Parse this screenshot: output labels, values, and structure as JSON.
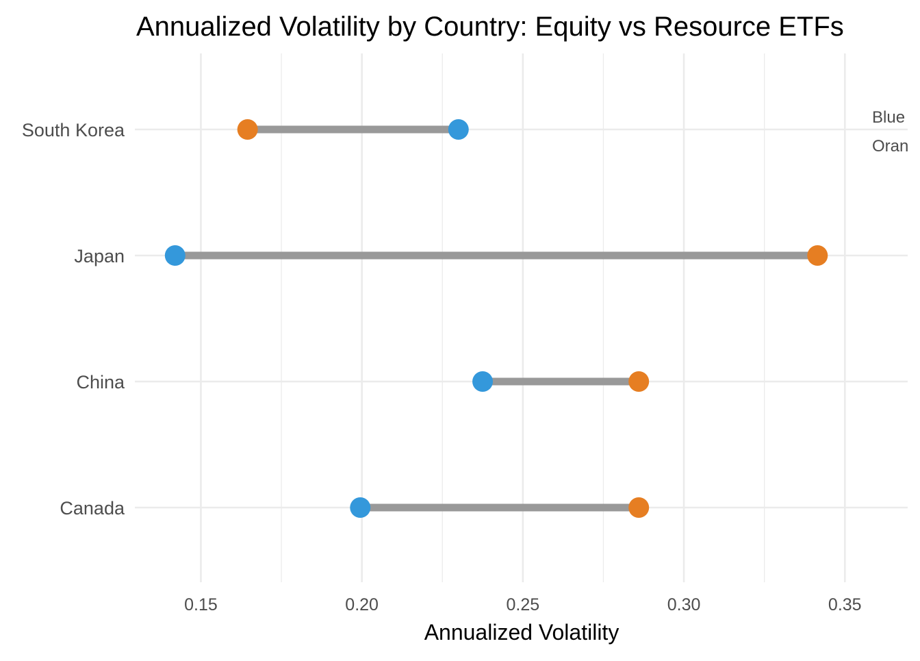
{
  "chart_data": {
    "type": "dumbbell",
    "title": "Annualized Volatility by Country: Equity vs Resource ETFs",
    "xlabel": "Annualized Volatility",
    "ylabel": "",
    "xlim": [
      0.1295,
      0.3695
    ],
    "x_ticks": [
      0.15,
      0.2,
      0.25,
      0.3,
      0.35
    ],
    "x_tick_labels": [
      "0.15",
      "0.20",
      "0.25",
      "0.30",
      "0.35"
    ],
    "grid": true,
    "categories": [
      "Canada",
      "China",
      "Japan",
      "South Korea"
    ],
    "series": [
      {
        "key": "equity",
        "color": "#3498db",
        "values": [
          0.1995,
          0.2375,
          0.142,
          0.23
        ]
      },
      {
        "key": "resource",
        "color": "#e67e22",
        "values": [
          0.286,
          0.286,
          0.3415,
          0.1645
        ]
      }
    ],
    "segment_color": "#999999",
    "annotation_lines": [
      "Blue",
      "Oran"
    ]
  }
}
